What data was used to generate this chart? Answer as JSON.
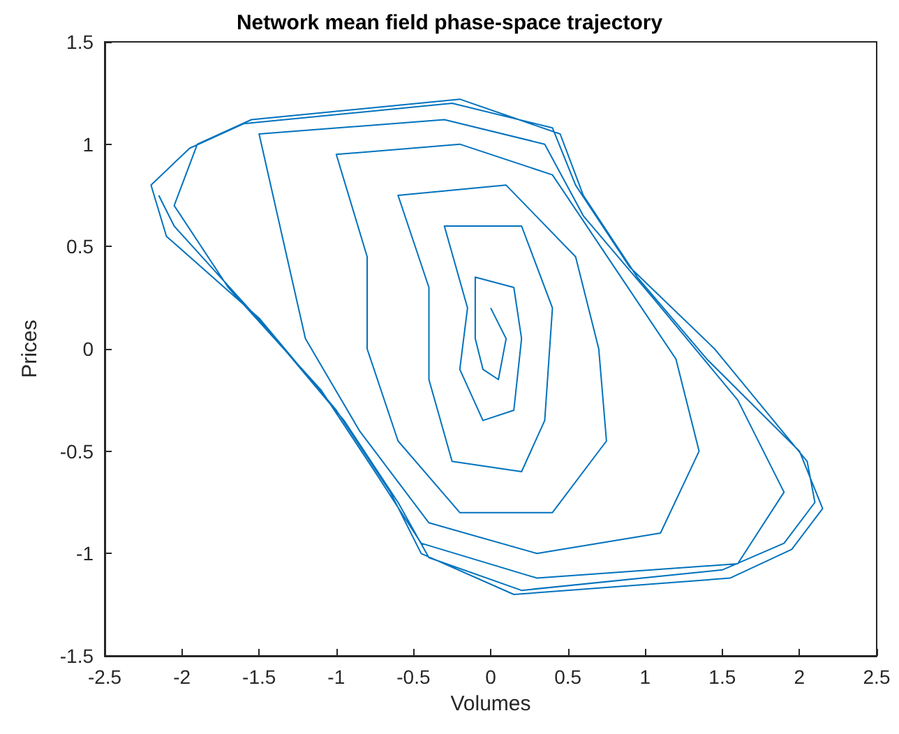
{
  "chart_data": {
    "type": "line",
    "title": "Network mean field phase-space trajectory",
    "xlabel": "Volumes",
    "ylabel": "Prices",
    "xlim": [
      -2.5,
      2.5
    ],
    "xticks": [
      -2.5,
      -2,
      -1.5,
      -1,
      -0.5,
      0,
      0.5,
      1,
      1.5,
      2,
      2.5
    ],
    "ylim": [
      -1.5,
      1.5
    ],
    "yticks": [
      -1.5,
      -1,
      -0.5,
      0,
      0.5,
      1,
      1.5
    ],
    "grid": false,
    "marker": "none",
    "line_style": "solid",
    "series": [
      {
        "color": "#0072bd",
        "x": [
          0,
          0.1,
          0.05,
          -0.05,
          -0.1,
          -0.1,
          0.15,
          0.2,
          0.15,
          -0.05,
          -0.2,
          -0.15,
          -0.3,
          0.2,
          0.4,
          0.35,
          0.2,
          -0.25,
          -0.4,
          -0.4,
          -0.6,
          0.1,
          0.55,
          0.7,
          0.75,
          0.4,
          -0.2,
          -0.6,
          -0.8,
          -0.8,
          -1,
          -0.2,
          0.4,
          0.8,
          1.2,
          1.35,
          1.1,
          0.3,
          -0.4,
          -0.85,
          -1.2,
          -1.35,
          -1.5,
          -0.3,
          0.35,
          0.6,
          1.05,
          1.6,
          1.9,
          1.6,
          0.3,
          -0.45,
          -0.75,
          -1.1,
          -1.7,
          -2.05,
          -1.9,
          -1.55,
          -0.2,
          0.45,
          0.6,
          0.95,
          1.4,
          2,
          2.15,
          1.95,
          1.55,
          0.15,
          -0.45,
          -0.65,
          -1,
          -1.5,
          -2.1,
          -2.2,
          -1.95,
          -1.6,
          -0.25,
          0.4,
          0.55,
          0.9,
          1.45,
          2.05,
          2.1,
          1.9,
          1.5,
          0.2,
          -0.4,
          -0.6,
          -0.95,
          -1.45,
          -2.05,
          -2.15
        ],
        "values": [
          0.2,
          0.05,
          -0.15,
          -0.1,
          0.05,
          0.35,
          0.3,
          0.05,
          -0.3,
          -0.35,
          -0.1,
          0.2,
          0.6,
          0.6,
          0.2,
          -0.35,
          -0.6,
          -0.55,
          -0.15,
          0.3,
          0.75,
          0.8,
          0.45,
          0,
          -0.45,
          -0.8,
          -0.8,
          -0.45,
          0,
          0.45,
          0.95,
          1,
          0.85,
          0.4,
          -0.05,
          -0.5,
          -0.9,
          -1,
          -0.85,
          -0.4,
          0.05,
          0.55,
          1.05,
          1.12,
          1,
          0.65,
          0.25,
          -0.25,
          -0.7,
          -1.05,
          -1.12,
          -0.95,
          -0.6,
          -0.2,
          0.3,
          0.7,
          1,
          1.12,
          1.22,
          1.05,
          0.75,
          0.35,
          -0.05,
          -0.5,
          -0.78,
          -0.98,
          -1.12,
          -1.2,
          -1,
          -0.7,
          -0.3,
          0.15,
          0.55,
          0.8,
          0.98,
          1.1,
          1.2,
          1.08,
          0.8,
          0.4,
          0,
          -0.55,
          -0.75,
          -0.95,
          -1.08,
          -1.18,
          -1.02,
          -0.75,
          -0.35,
          0.1,
          0.6,
          0.75
        ]
      }
    ]
  }
}
